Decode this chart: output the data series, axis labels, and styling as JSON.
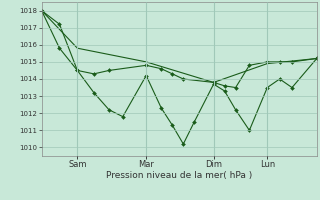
{
  "xlabel": "Pression niveau de la mer( hPa )",
  "background_color": "#c8e8d8",
  "grid_color": "#a0c8b8",
  "line_color": "#1a5c1a",
  "ylim": [
    1009.5,
    1018.5
  ],
  "yticks": [
    1010,
    1011,
    1012,
    1013,
    1014,
    1015,
    1016,
    1017,
    1018
  ],
  "xlim": [
    0.0,
    1.0
  ],
  "x_tick_positions": [
    0.13,
    0.38,
    0.625,
    0.82
  ],
  "x_tick_labels": [
    "Sam",
    "Mar",
    "Dim",
    "Lun"
  ],
  "x_vlines": [
    0.13,
    0.38,
    0.625,
    0.82
  ],
  "series1_x": [
    0.0,
    0.065,
    0.13,
    0.19,
    0.245,
    0.295,
    0.38,
    0.435,
    0.475,
    0.515,
    0.555,
    0.625,
    0.665,
    0.705,
    0.755,
    0.82,
    0.865,
    0.91,
    1.0
  ],
  "series1_y": [
    1018.0,
    1017.2,
    1014.5,
    1013.2,
    1012.2,
    1011.8,
    1014.2,
    1012.3,
    1011.3,
    1010.2,
    1011.5,
    1013.7,
    1013.3,
    1012.2,
    1011.0,
    1013.5,
    1014.0,
    1013.5,
    1015.2
  ],
  "series2_x": [
    0.0,
    0.065,
    0.13,
    0.19,
    0.245,
    0.38,
    0.435,
    0.475,
    0.515,
    0.625,
    0.665,
    0.705,
    0.755,
    0.82,
    0.865,
    0.91,
    1.0
  ],
  "series2_y": [
    1018.0,
    1015.8,
    1014.5,
    1014.3,
    1014.5,
    1014.8,
    1014.6,
    1014.3,
    1014.0,
    1013.8,
    1013.6,
    1013.5,
    1014.8,
    1015.0,
    1015.0,
    1015.0,
    1015.2
  ],
  "series3_x": [
    0.0,
    0.13,
    0.38,
    0.625,
    0.82,
    1.0
  ],
  "series3_y": [
    1018.0,
    1015.8,
    1015.0,
    1013.8,
    1014.9,
    1015.2
  ]
}
